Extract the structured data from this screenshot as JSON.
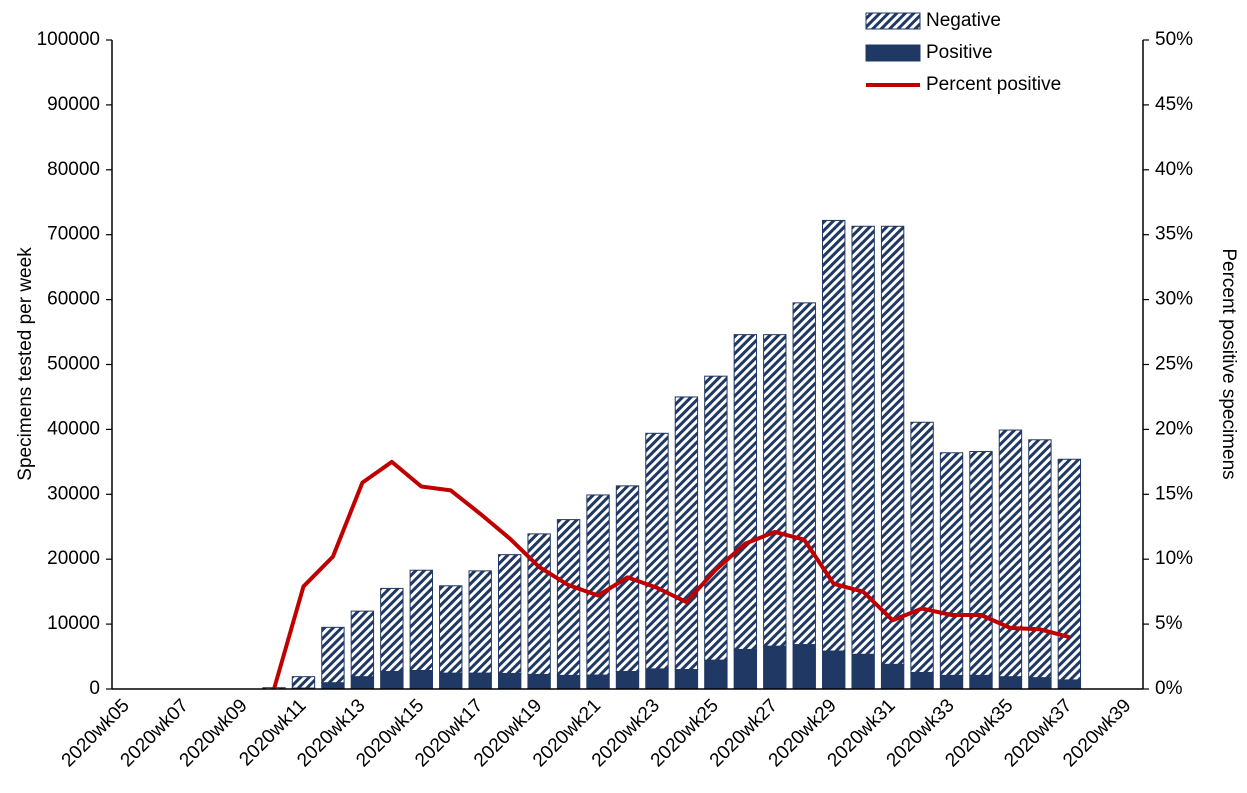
{
  "chart_data": {
    "type": "bar_line",
    "y_label": "Specimens tested per week",
    "y2_label": "Percent positive specimens",
    "categories": [
      "2020wk05",
      null,
      "2020wk07",
      null,
      "2020wk09",
      null,
      "2020wk11",
      null,
      "2020wk13",
      null,
      "2020wk15",
      null,
      "2020wk17",
      null,
      "2020wk19",
      null,
      "2020wk21",
      null,
      "2020wk23",
      null,
      "2020wk25",
      null,
      "2020wk27",
      null,
      "2020wk29",
      null,
      "2020wk31",
      null,
      "2020wk33",
      null,
      "2020wk35",
      null,
      "2020wk37",
      null,
      "2020wk39"
    ],
    "stacked": true,
    "series": [
      {
        "name": "Positive",
        "type": "bar",
        "color": "#203864",
        "fill_style": "solid",
        "values": [
          null,
          null,
          null,
          null,
          null,
          0,
          150,
          970,
          1900,
          2700,
          2850,
          2450,
          2450,
          2400,
          2250,
          2100,
          2150,
          2700,
          3100,
          3000,
          4450,
          6100,
          6600,
          6850,
          5850,
          5350,
          3800,
          2550,
          2100,
          2100,
          1900,
          1750,
          1400,
          null,
          null
        ]
      },
      {
        "name": "Negative",
        "type": "bar",
        "color": "#203864",
        "fill_style": "hatch",
        "values": [
          null,
          null,
          null,
          null,
          null,
          200,
          1750,
          8530,
          10100,
          12800,
          15450,
          13450,
          15750,
          18300,
          21650,
          24000,
          27750,
          28600,
          36300,
          42000,
          43750,
          48500,
          48000,
          52650,
          66350,
          65950,
          67500,
          38550,
          34300,
          34500,
          38000,
          36650,
          34000,
          null,
          null
        ]
      },
      {
        "name": "Percent positive",
        "type": "line",
        "axis": "y2",
        "color": "#c00000",
        "values": [
          null,
          null,
          null,
          null,
          null,
          0,
          7.9,
          10.2,
          15.9,
          17.5,
          15.6,
          15.3,
          13.5,
          11.6,
          9.4,
          8.0,
          7.2,
          8.6,
          7.8,
          6.7,
          9.2,
          11.2,
          12.1,
          11.5,
          8.1,
          7.5,
          5.3,
          6.2,
          5.7,
          5.7,
          4.7,
          4.6,
          4.0,
          null,
          null
        ]
      }
    ],
    "legend_order": [
      1,
      0,
      2
    ],
    "legend": "top-right",
    "ylim": [
      0,
      100000
    ],
    "yticks": [
      0,
      10000,
      20000,
      30000,
      40000,
      50000,
      60000,
      70000,
      80000,
      90000,
      100000
    ],
    "y2lim": [
      0,
      50
    ],
    "y2ticks": [
      {
        "value": 0,
        "label": "0%"
      },
      {
        "value": 5,
        "label": "5%"
      },
      {
        "value": 10,
        "label": "10%"
      },
      {
        "value": 15,
        "label": "15%"
      },
      {
        "value": 20,
        "label": "20%"
      },
      {
        "value": 25,
        "label": "25%"
      },
      {
        "value": 30,
        "label": "30%"
      },
      {
        "value": 35,
        "label": "35%"
      },
      {
        "value": 40,
        "label": "40%"
      },
      {
        "value": 45,
        "label": "45%"
      },
      {
        "value": 50,
        "label": "50%"
      }
    ]
  }
}
